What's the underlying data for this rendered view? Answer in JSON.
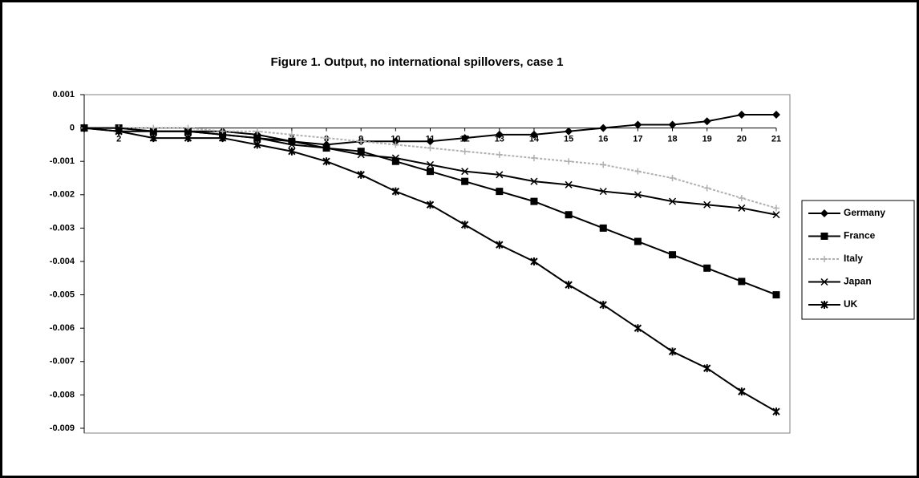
{
  "chart_data": {
    "type": "line",
    "title": "Figure 1. Output, no international spillovers, case 1",
    "categories": [
      null,
      2,
      3,
      4,
      5,
      6,
      7,
      8,
      9,
      10,
      11,
      12,
      13,
      14,
      15,
      16,
      17,
      18,
      19,
      20,
      21
    ],
    "series": [
      {
        "name": "Germany",
        "color": "#000000",
        "marker": "diamond",
        "values": [
          0,
          -0.0001,
          -0.0001,
          -0.0001,
          -0.0001,
          -0.0002,
          -0.0004,
          -0.0005,
          -0.0004,
          -0.0004,
          -0.0004,
          -0.0003,
          -0.0002,
          -0.0002,
          -0.0001,
          0,
          0.0001,
          0.0001,
          0.0002,
          0.0004,
          0.0004
        ]
      },
      {
        "name": "France",
        "color": "#000000",
        "marker": "square",
        "values": [
          0,
          0,
          -0.0001,
          -0.0001,
          -0.0002,
          -0.0003,
          -0.0004,
          -0.0006,
          -0.0007,
          -0.001,
          -0.0013,
          -0.0016,
          -0.0019,
          -0.0022,
          -0.0026,
          -0.003,
          -0.0034,
          -0.0038,
          -0.0042,
          -0.0046,
          -0.005
        ]
      },
      {
        "name": "Italy",
        "color": "#b0b0b0",
        "marker": "plus",
        "values": [
          0,
          0,
          0,
          0,
          -0.0001,
          -0.0001,
          -0.0002,
          -0.0003,
          -0.0004,
          -0.0005,
          -0.0006,
          -0.0007,
          -0.0008,
          -0.0009,
          -0.001,
          -0.0011,
          -0.0013,
          -0.0015,
          -0.0018,
          -0.0021,
          -0.0024
        ]
      },
      {
        "name": "Japan",
        "color": "#000000",
        "marker": "x",
        "values": [
          0,
          0,
          -0.0001,
          -0.0001,
          -0.0002,
          -0.0003,
          -0.0005,
          -0.0006,
          -0.0008,
          -0.0009,
          -0.0011,
          -0.0013,
          -0.0014,
          -0.0016,
          -0.0017,
          -0.0019,
          -0.002,
          -0.0022,
          -0.0023,
          -0.0024,
          -0.0026
        ]
      },
      {
        "name": "UK",
        "color": "#000000",
        "marker": "star",
        "values": [
          0,
          -0.0001,
          -0.0003,
          -0.0003,
          -0.0003,
          -0.0005,
          -0.0007,
          -0.001,
          -0.0014,
          -0.0019,
          -0.0023,
          -0.0029,
          -0.0035,
          -0.004,
          -0.0047,
          -0.0053,
          -0.006,
          -0.0067,
          -0.0072,
          -0.0079,
          -0.0085
        ]
      }
    ],
    "ylim": [
      -0.009,
      0.001
    ],
    "yticks": [
      0.001,
      0,
      -0.001,
      -0.002,
      -0.003,
      -0.004,
      -0.005,
      -0.006,
      -0.007,
      -0.008,
      -0.009
    ],
    "legend": "right"
  }
}
